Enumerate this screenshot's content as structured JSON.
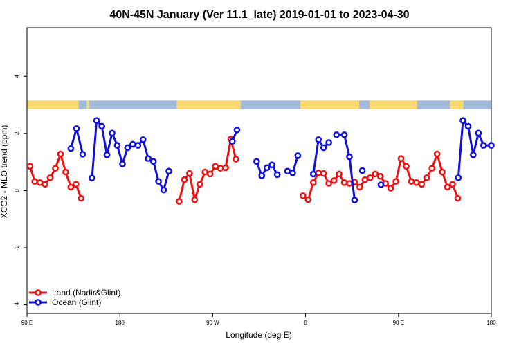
{
  "chart_data": {
    "type": "line",
    "title": "40N-45N January (Ver 11.1_late)   2019-01-01 to 2023-04-30",
    "xlabel": "Longitude (deg E)",
    "ylabel": "XCO2 - MLO trend (ppm)",
    "xlim": [
      90,
      540
    ],
    "ylim": [
      -4.3,
      5.7
    ],
    "x_ticks": [
      {
        "value": 90,
        "label": "90 E"
      },
      {
        "value": 180,
        "label": "180"
      },
      {
        "value": 270,
        "label": "90 W"
      },
      {
        "value": 360,
        "label": "0"
      },
      {
        "value": 450,
        "label": "90 E"
      },
      {
        "value": 540,
        "label": "180"
      }
    ],
    "y_ticks": [
      {
        "value": -4,
        "label": "-4"
      },
      {
        "value": -2,
        "label": "-2"
      },
      {
        "value": 0,
        "label": "0"
      },
      {
        "value": 2,
        "label": "2"
      },
      {
        "value": 4,
        "label": "4"
      }
    ],
    "legend_position": "bottom-left",
    "surface_band": {
      "y_range": [
        2.85,
        3.15
      ],
      "ocean_color": "#a2b9d9",
      "land_color": "#fcd96e",
      "land_intervals": [
        [
          90,
          140
        ],
        [
          148,
          150
        ],
        [
          235,
          297
        ],
        [
          355,
          412
        ],
        [
          422,
          468
        ],
        [
          500,
          513
        ]
      ]
    },
    "series": [
      {
        "name": "Land (Nadir&Glint)",
        "color": "#ee1111",
        "segments": [
          [
            [
              93,
              0.85
            ],
            [
              97.5,
              0.32
            ],
            [
              102.5,
              0.28
            ],
            [
              107.5,
              0.22
            ],
            [
              112.5,
              0.45
            ],
            [
              117.5,
              0.78
            ],
            [
              122.5,
              1.28
            ],
            [
              127.5,
              0.65
            ],
            [
              132.5,
              0.12
            ],
            [
              137.5,
              0.22
            ],
            [
              142.5,
              -0.27
            ]
          ],
          [
            [
              237.5,
              -0.38
            ],
            [
              242.5,
              0.38
            ],
            [
              247.5,
              0.6
            ],
            [
              252.5,
              -0.32
            ],
            [
              257.5,
              0.22
            ],
            [
              262.5,
              0.65
            ],
            [
              267.5,
              0.58
            ],
            [
              272.5,
              0.85
            ],
            [
              277.5,
              0.78
            ],
            [
              282.5,
              0.8
            ],
            [
              287.5,
              1.8
            ],
            [
              292.5,
              1.1
            ]
          ],
          [
            [
              357.5,
              -0.18
            ],
            [
              362.5,
              -0.32
            ],
            [
              367.5,
              0.28
            ],
            [
              372.5,
              0.62
            ],
            [
              377.5,
              0.6
            ],
            [
              382.5,
              0.25
            ],
            [
              387.5,
              0.35
            ],
            [
              392.5,
              0.58
            ],
            [
              397.5,
              0.28
            ],
            [
              402.5,
              0.25
            ],
            [
              407.5,
              0.3
            ],
            [
              412.5,
              0.12
            ],
            [
              417.5,
              0.38
            ],
            [
              422.5,
              0.45
            ],
            [
              427.5,
              0.58
            ],
            [
              432.5,
              0.5
            ],
            [
              437.5,
              0.25
            ],
            [
              442.5,
              0.08
            ],
            [
              447.5,
              0.32
            ],
            [
              452.5,
              1.12
            ],
            [
              457.5,
              0.85
            ],
            [
              462.5,
              0.32
            ],
            [
              467.5,
              0.28
            ],
            [
              472.5,
              0.22
            ],
            [
              477.5,
              0.45
            ],
            [
              482.5,
              0.78
            ],
            [
              487.5,
              1.28
            ],
            [
              492.5,
              0.65
            ],
            [
              497.5,
              0.12
            ],
            [
              502.5,
              0.22
            ],
            [
              507.5,
              -0.27
            ]
          ]
        ]
      },
      {
        "name": "Ocean (Glint)",
        "color": "#1111dd",
        "segments": [
          [
            [
              132.5,
              1.47
            ],
            [
              138,
              2.17
            ],
            [
              144,
              1.27
            ]
          ],
          [
            [
              153,
              0.44
            ],
            [
              157.5,
              2.45
            ],
            [
              162.5,
              2.25
            ],
            [
              167.5,
              1.25
            ],
            [
              172.5,
              2.01
            ],
            [
              177.5,
              1.58
            ],
            [
              182.5,
              0.93
            ],
            [
              187.5,
              1.5
            ],
            [
              192.5,
              1.62
            ],
            [
              197.5,
              1.58
            ],
            [
              202.5,
              1.78
            ],
            [
              207.5,
              1.12
            ],
            [
              212.5,
              1.02
            ],
            [
              217.5,
              0.32
            ],
            [
              222.5,
              0.02
            ],
            [
              227.5,
              0.68
            ]
          ],
          [
            [
              289,
              1.72
            ],
            [
              293.5,
              2.12
            ]
          ],
          [
            [
              312.5,
              1.02
            ],
            [
              317.5,
              0.52
            ],
            [
              322.5,
              0.8
            ],
            [
              327.5,
              0.9
            ],
            [
              332.5,
              0.56
            ]
          ],
          [
            [
              342.5,
              0.68
            ],
            [
              347.5,
              0.62
            ],
            [
              352.5,
              1.22
            ]
          ],
          [
            [
              367.5,
              0.58
            ],
            [
              372.5,
              1.78
            ],
            [
              377.5,
              1.5
            ],
            [
              382.5,
              1.68
            ]
          ],
          [
            [
              390,
              1.95
            ],
            [
              397.5,
              1.95
            ],
            [
              402.5,
              1.18
            ],
            [
              407.5,
              -0.33
            ]
          ],
          [
            [
              415,
              0.7
            ]
          ],
          [
            [
              433,
              0.2
            ]
          ],
          [
            [
              508,
              0.45
            ],
            [
              512.5,
              2.45
            ],
            [
              517.5,
              2.25
            ],
            [
              522.5,
              1.25
            ],
            [
              527.5,
              2.01
            ],
            [
              532.5,
              1.58
            ],
            [
              540,
              1.58
            ]
          ]
        ]
      }
    ]
  }
}
